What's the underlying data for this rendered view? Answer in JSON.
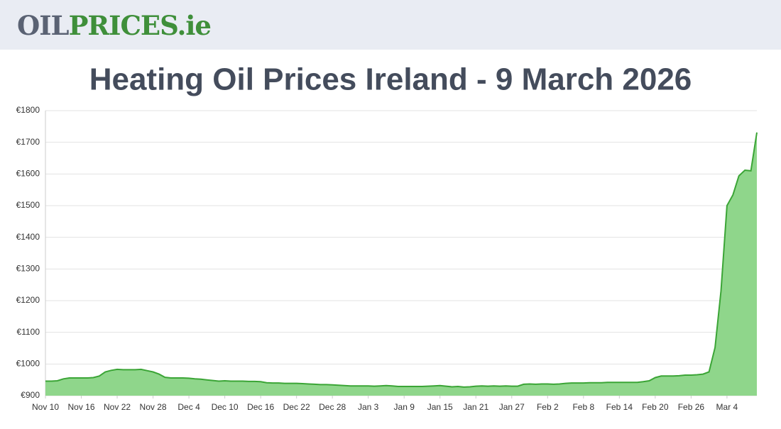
{
  "header": {
    "logo": [
      "OIL",
      "PRICES.ie"
    ]
  },
  "chart_data": {
    "type": "area",
    "title": "Heating Oil Prices Ireland - 9 March 2026",
    "categories": [
      "Nov 10",
      null,
      null,
      null,
      null,
      null,
      "Nov 16",
      null,
      null,
      null,
      null,
      null,
      "Nov 22",
      null,
      null,
      null,
      null,
      null,
      "Nov 28",
      null,
      null,
      null,
      null,
      null,
      "Dec 4",
      null,
      null,
      null,
      null,
      null,
      "Dec 10",
      null,
      null,
      null,
      null,
      null,
      "Dec 16",
      null,
      null,
      null,
      null,
      null,
      "Dec 22",
      null,
      null,
      null,
      null,
      null,
      "Dec 28",
      null,
      null,
      null,
      null,
      null,
      "Jan 3",
      null,
      null,
      null,
      null,
      null,
      "Jan 9",
      null,
      null,
      null,
      null,
      null,
      "Jan 15",
      null,
      null,
      null,
      null,
      null,
      "Jan 21",
      null,
      null,
      null,
      null,
      null,
      "Jan 27",
      null,
      null,
      null,
      null,
      null,
      "Feb 2",
      null,
      null,
      null,
      null,
      null,
      "Feb 8",
      null,
      null,
      null,
      null,
      null,
      "Feb 14",
      null,
      null,
      null,
      null,
      null,
      "Feb 20",
      null,
      null,
      null,
      null,
      null,
      "Feb 26",
      null,
      null,
      null,
      null,
      null,
      "Mar 4",
      null,
      null,
      null,
      null,
      null
    ],
    "values": [
      946,
      946,
      947,
      953,
      956,
      956,
      956,
      956,
      957,
      962,
      975,
      980,
      983,
      982,
      982,
      982,
      983,
      979,
      975,
      968,
      958,
      956,
      956,
      956,
      955,
      953,
      952,
      950,
      948,
      946,
      947,
      946,
      946,
      946,
      945,
      945,
      944,
      941,
      940,
      940,
      939,
      939,
      939,
      938,
      937,
      936,
      935,
      935,
      934,
      933,
      932,
      931,
      931,
      931,
      931,
      930,
      931,
      932,
      931,
      929,
      929,
      929,
      929,
      929,
      930,
      931,
      932,
      930,
      928,
      929,
      927,
      928,
      930,
      931,
      930,
      931,
      930,
      931,
      930,
      930,
      936,
      937,
      936,
      937,
      937,
      936,
      937,
      939,
      940,
      940,
      940,
      941,
      941,
      941,
      942,
      942,
      942,
      942,
      942,
      942,
      944,
      947,
      957,
      962,
      962,
      962,
      963,
      965,
      965,
      966,
      968,
      975,
      1052,
      1231,
      1500,
      1534,
      1594,
      1612,
      1610,
      1731
    ],
    "color": "#3ba536",
    "fill": "#8fd68b",
    "ylim": [
      900,
      1800
    ],
    "yticks": [
      {
        "value": 900,
        "label": "€900"
      },
      {
        "value": 1000,
        "label": "€1000"
      },
      {
        "value": 1100,
        "label": "€1100"
      },
      {
        "value": 1200,
        "label": "€1200"
      },
      {
        "value": 1300,
        "label": "€1300"
      },
      {
        "value": 1400,
        "label": "€1400"
      },
      {
        "value": 1500,
        "label": "€1500"
      },
      {
        "value": 1600,
        "label": "€1600"
      },
      {
        "value": 1700,
        "label": "€1700"
      },
      {
        "value": 1800,
        "label": "€1800"
      }
    ],
    "grid": true
  }
}
